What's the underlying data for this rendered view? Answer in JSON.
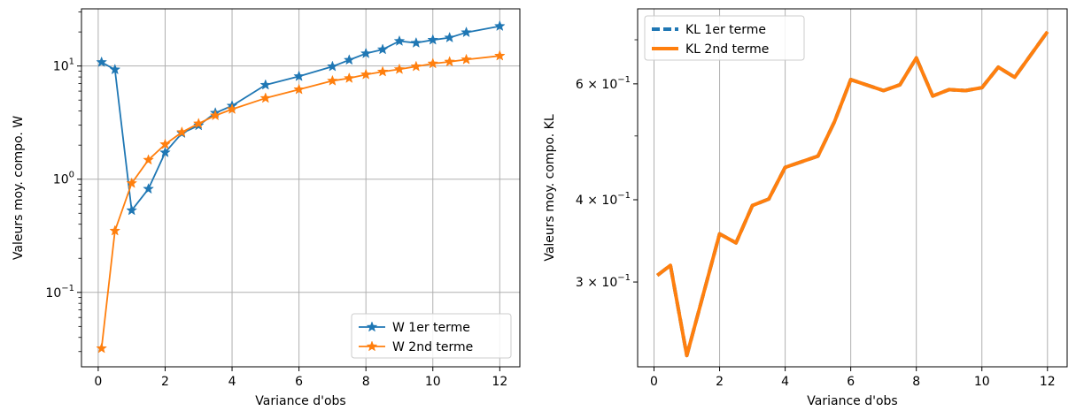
{
  "chart_data": [
    {
      "type": "line",
      "xlabel": "Variance d'obs",
      "ylabel": "Valeurs moy. compo. W",
      "yscale": "log",
      "xlim": [
        -0.5,
        12.6
      ],
      "ylim": [
        0.022,
        32
      ],
      "xticks": [
        0,
        2,
        4,
        6,
        8,
        10,
        12
      ],
      "xtick_labels": [
        "0",
        "2",
        "4",
        "6",
        "8",
        "10",
        "12"
      ],
      "yticks": [
        0.1,
        1,
        10
      ],
      "ytick_labels": [
        {
          "base": "10",
          "exp": "−1"
        },
        {
          "base": "10",
          "exp": "0"
        },
        {
          "base": "10",
          "exp": "1"
        }
      ],
      "grid": true,
      "legend": "lower right",
      "series": [
        {
          "name": "W 1er terme",
          "color": "#1f77b4",
          "marker": "star",
          "style": "solid",
          "x": [
            0.1,
            0.5,
            1,
            1.5,
            2,
            2.5,
            3,
            3.5,
            4,
            5,
            6,
            7,
            7.5,
            8,
            8.5,
            9,
            9.5,
            10,
            10.5,
            11,
            12
          ],
          "y": [
            10.8,
            9.3,
            0.53,
            0.82,
            1.72,
            2.55,
            2.98,
            3.85,
            4.45,
            6.8,
            8.1,
            9.9,
            11.3,
            12.9,
            14.0,
            16.6,
            16.0,
            17.0,
            17.8,
            19.8,
            22.5
          ]
        },
        {
          "name": "W 2nd terme",
          "color": "#ff7f0e",
          "marker": "star",
          "style": "solid",
          "x": [
            0.1,
            0.5,
            1,
            1.5,
            2,
            2.5,
            3,
            3.5,
            4,
            5,
            6,
            7,
            7.5,
            8,
            8.5,
            9,
            9.5,
            10,
            10.5,
            11,
            12
          ],
          "y": [
            0.032,
            0.35,
            0.92,
            1.48,
            2.03,
            2.6,
            3.1,
            3.65,
            4.15,
            5.2,
            6.2,
            7.4,
            7.8,
            8.4,
            8.9,
            9.35,
            9.9,
            10.5,
            10.9,
            11.4,
            12.3
          ]
        }
      ]
    },
    {
      "type": "line",
      "xlabel": "Variance d'obs",
      "ylabel": "Valeurs moy. compo. KL",
      "yscale": "log",
      "xlim": [
        -0.5,
        12.6
      ],
      "ylim": [
        0.223,
        0.78
      ],
      "xticks": [
        0,
        2,
        4,
        6,
        8,
        10,
        12
      ],
      "xtick_labels": [
        "0",
        "2",
        "4",
        "6",
        "8",
        "10",
        "12"
      ],
      "yticks": [
        0.3,
        0.4,
        0.6
      ],
      "ytick_labels": [
        {
          "base": "3 × 10",
          "exp": "−1"
        },
        {
          "base": "4 × 10",
          "exp": "−1"
        },
        {
          "base": "6 × 10",
          "exp": "−1"
        }
      ],
      "grid": "x",
      "legend": "upper left",
      "series": [
        {
          "name": "KL 1er terme",
          "color": "#1f77b4",
          "style": "dashed",
          "x": [
            0.1,
            0.5,
            1,
            1.5,
            2,
            2.5,
            3,
            3.5,
            4,
            5,
            5.5,
            6,
            7,
            7.5,
            8,
            8.5,
            9,
            9.5,
            10,
            10.5,
            11,
            12
          ],
          "y": [
            0.307,
            0.318,
            0.232,
            0.287,
            0.355,
            0.344,
            0.392,
            0.401,
            0.448,
            0.466,
            0.525,
            0.609,
            0.586,
            0.598,
            0.657,
            0.575,
            0.588,
            0.586,
            0.592,
            0.636,
            0.614,
            0.72
          ]
        },
        {
          "name": "KL 2nd terme",
          "color": "#ff7f0e",
          "style": "solid",
          "x": [
            0.1,
            0.5,
            1,
            1.5,
            2,
            2.5,
            3,
            3.5,
            4,
            5,
            5.5,
            6,
            7,
            7.5,
            8,
            8.5,
            9,
            9.5,
            10,
            10.5,
            11,
            12
          ],
          "y": [
            0.307,
            0.318,
            0.232,
            0.287,
            0.355,
            0.344,
            0.392,
            0.401,
            0.448,
            0.466,
            0.525,
            0.609,
            0.586,
            0.598,
            0.657,
            0.575,
            0.588,
            0.586,
            0.592,
            0.636,
            0.614,
            0.72
          ]
        }
      ]
    }
  ]
}
